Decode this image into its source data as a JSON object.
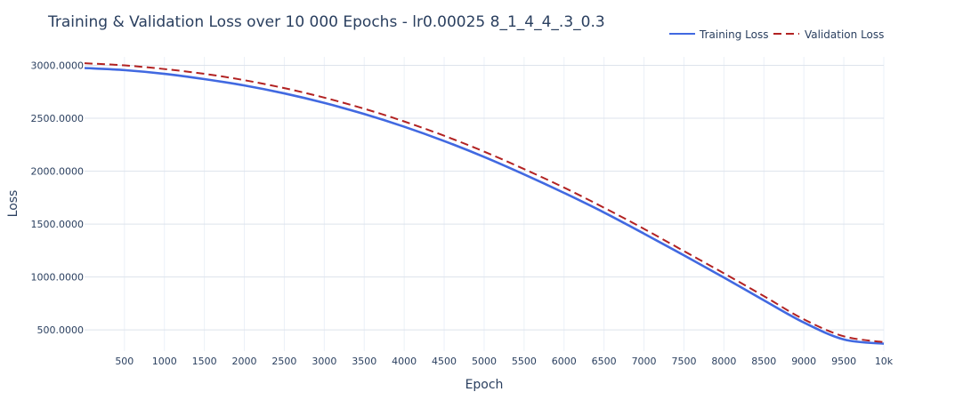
{
  "chart_data": {
    "type": "line",
    "title": "Training & Validation Loss over 10 000 Epochs - lr0.00025 8_1_4_4_.3_0.3",
    "xlabel": "Epoch",
    "ylabel": "Loss",
    "xlim": [
      1,
      10000
    ],
    "ylim": [
      300,
      3080
    ],
    "x_ticks": [
      500,
      1000,
      1500,
      2000,
      2500,
      3000,
      3500,
      4000,
      4500,
      5000,
      5500,
      6000,
      6500,
      7000,
      7500,
      8000,
      8500,
      9000,
      9500,
      10000
    ],
    "x_tick_labels": [
      "500",
      "1000",
      "1500",
      "2000",
      "2500",
      "3000",
      "3500",
      "4000",
      "4500",
      "5000",
      "5500",
      "6000",
      "6500",
      "7000",
      "7500",
      "8000",
      "8500",
      "9000",
      "9500",
      "10k"
    ],
    "y_ticks": [
      500,
      1000,
      1500,
      2000,
      2500,
      3000
    ],
    "y_tick_labels": [
      "500.0000",
      "1000.0000",
      "1500.0000",
      "2000.0000",
      "2500.0000",
      "3000.0000"
    ],
    "grid": true,
    "legend_position": "top-right",
    "x": [
      1,
      500,
      1000,
      1500,
      2000,
      2500,
      3000,
      3500,
      4000,
      4500,
      5000,
      5500,
      6000,
      6500,
      7000,
      7500,
      8000,
      8500,
      9000,
      9500,
      10000
    ],
    "series": [
      {
        "name": "Training Loss",
        "color": "#4169e1",
        "dash": "solid",
        "values": [
          2975,
          2955,
          2920,
          2870,
          2810,
          2735,
          2645,
          2540,
          2420,
          2285,
          2135,
          1970,
          1795,
          1610,
          1410,
          1205,
          995,
          780,
          570,
          410,
          370
        ]
      },
      {
        "name": "Validation Loss",
        "color": "#b22222",
        "dash": "dash",
        "values": [
          3020,
          3000,
          2965,
          2920,
          2860,
          2785,
          2695,
          2590,
          2470,
          2335,
          2185,
          2020,
          1845,
          1655,
          1455,
          1245,
          1035,
          820,
          600,
          440,
          385
        ]
      }
    ]
  }
}
